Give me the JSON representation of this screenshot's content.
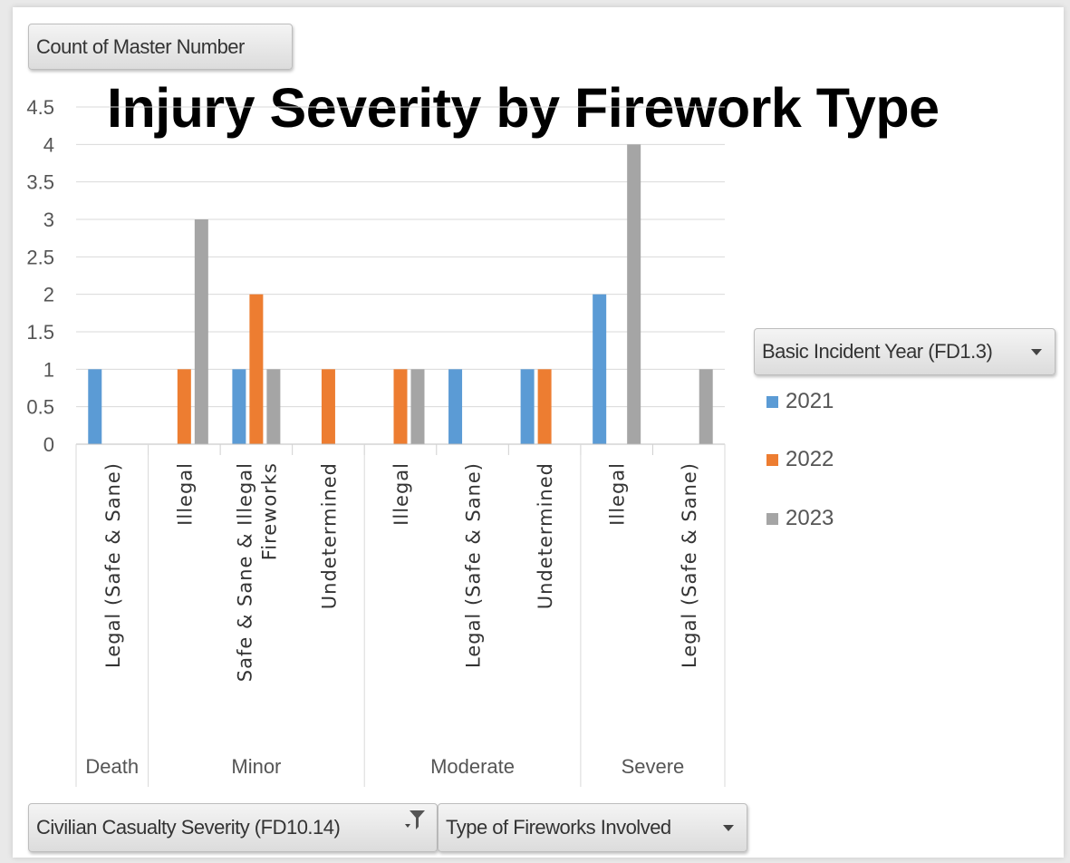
{
  "pivot": {
    "value_field": "Count of Master Number",
    "legend_field": "Basic Incident Year (FD1.3)",
    "axis_fields": [
      "Civilian Casualty Severity (FD10.14)",
      "Type of Fireworks Involved"
    ]
  },
  "icons": {
    "dropdown": "chevron-down-icon",
    "filter": "filter-icon"
  },
  "chart_data": {
    "type": "bar",
    "title": "Injury Severity by Firework Type",
    "xlabel": "",
    "ylabel": "",
    "ylim": [
      0,
      4.5
    ],
    "yticks": [
      "0",
      "0.5",
      "1",
      "1.5",
      "2",
      "2.5",
      "3",
      "3.5",
      "4",
      "4.5"
    ],
    "grid": true,
    "legend_position": "right",
    "groups": [
      {
        "label": "Death",
        "categories": [
          "Legal (Safe & Sane)"
        ]
      },
      {
        "label": "Minor",
        "categories": [
          "Illegal",
          "Safe & Sane & Illegal Fireworks",
          "Undetermined"
        ]
      },
      {
        "label": "Moderate",
        "categories": [
          "Illegal",
          "Legal (Safe & Sane)",
          "Undetermined"
        ]
      },
      {
        "label": "Severe",
        "categories": [
          "Illegal",
          "Legal (Safe & Sane)"
        ]
      }
    ],
    "categories": [
      "Legal (Safe & Sane)",
      "Illegal",
      "Safe & Sane & Illegal Fireworks",
      "Undetermined",
      "Illegal",
      "Legal (Safe & Sane)",
      "Undetermined",
      "Illegal",
      "Legal (Safe & Sane)"
    ],
    "series": [
      {
        "name": "2021",
        "color": "#5b9bd5",
        "values": [
          1,
          0,
          1,
          0,
          0,
          1,
          1,
          2,
          0
        ]
      },
      {
        "name": "2022",
        "color": "#ed7d31",
        "values": [
          0,
          1,
          2,
          1,
          1,
          0,
          1,
          0,
          0
        ]
      },
      {
        "name": "2023",
        "color": "#a5a5a5",
        "values": [
          0,
          3,
          1,
          0,
          1,
          0,
          0,
          4,
          1
        ]
      }
    ]
  }
}
